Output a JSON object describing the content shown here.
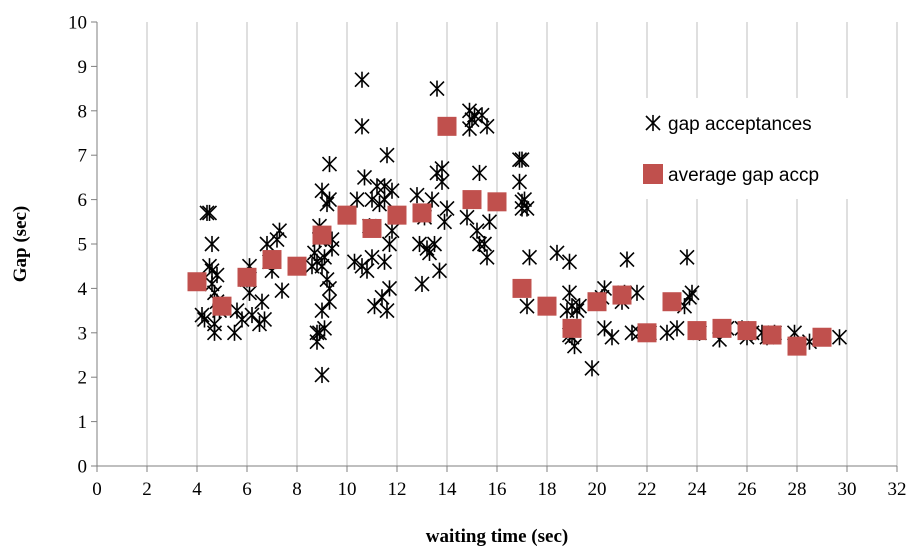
{
  "chart_data": {
    "type": "scatter",
    "xlabel": "waiting time (sec)",
    "ylabel": "Gap (sec)",
    "xlim": [
      0,
      32
    ],
    "ylim": [
      0,
      10
    ],
    "xticks": [
      "0",
      "2",
      "4",
      "6",
      "8",
      "10",
      "12",
      "14",
      "16",
      "18",
      "20",
      "22",
      "24",
      "26",
      "28",
      "30",
      "32"
    ],
    "yticks": [
      "0",
      "1",
      "2",
      "3",
      "4",
      "5",
      "6",
      "7",
      "8",
      "9",
      "10"
    ],
    "grid": "vertical",
    "legend_position": "right",
    "series": [
      {
        "name": "gap acceptances",
        "marker": "star",
        "color": "#000000",
        "points": [
          [
            4.2,
            3.4
          ],
          [
            4.3,
            3.3
          ],
          [
            4.4,
            5.7
          ],
          [
            4.5,
            5.7
          ],
          [
            4.5,
            4.5
          ],
          [
            4.6,
            4.4
          ],
          [
            4.6,
            4.1
          ],
          [
            4.6,
            5.0
          ],
          [
            4.7,
            3.9
          ],
          [
            4.7,
            3.2
          ],
          [
            4.7,
            3.0
          ],
          [
            4.8,
            4.3
          ],
          [
            4.8,
            3.7
          ],
          [
            4.9,
            3.5
          ],
          [
            5.5,
            3.0
          ],
          [
            5.6,
            3.5
          ],
          [
            5.8,
            3.3
          ],
          [
            6.0,
            4.2
          ],
          [
            6.1,
            3.9
          ],
          [
            6.1,
            4.5
          ],
          [
            6.2,
            3.4
          ],
          [
            6.5,
            3.2
          ],
          [
            6.6,
            3.7
          ],
          [
            6.7,
            3.3
          ],
          [
            6.8,
            5.0
          ],
          [
            6.9,
            4.6
          ],
          [
            7.0,
            4.4
          ],
          [
            7.2,
            5.1
          ],
          [
            7.3,
            5.3
          ],
          [
            7.4,
            3.95
          ],
          [
            8.6,
            4.5
          ],
          [
            8.7,
            4.8
          ],
          [
            8.8,
            2.8
          ],
          [
            8.8,
            3.0
          ],
          [
            8.8,
            4.6
          ],
          [
            8.9,
            3.0
          ],
          [
            8.9,
            5.4
          ],
          [
            8.9,
            5.1
          ],
          [
            9.0,
            6.2
          ],
          [
            9.0,
            4.5
          ],
          [
            9.0,
            3.5
          ],
          [
            9.0,
            2.05
          ],
          [
            9.1,
            3.1
          ],
          [
            9.1,
            4.7
          ],
          [
            9.2,
            4.2
          ],
          [
            9.2,
            5.9
          ],
          [
            9.3,
            6.8
          ],
          [
            9.3,
            6.0
          ],
          [
            9.3,
            4.0
          ],
          [
            9.3,
            3.7
          ],
          [
            9.4,
            4.9
          ],
          [
            9.4,
            5.1
          ],
          [
            10.3,
            4.6
          ],
          [
            10.4,
            6.0
          ],
          [
            10.6,
            7.65
          ],
          [
            10.6,
            8.7
          ],
          [
            10.6,
            4.5
          ],
          [
            10.7,
            6.5
          ],
          [
            10.8,
            4.4
          ],
          [
            10.9,
            5.4
          ],
          [
            11.0,
            4.7
          ],
          [
            11.0,
            6.0
          ],
          [
            11.1,
            3.6
          ],
          [
            11.2,
            6.3
          ],
          [
            11.3,
            5.9
          ],
          [
            11.4,
            3.8
          ],
          [
            11.5,
            4.6
          ],
          [
            11.5,
            6.3
          ],
          [
            11.5,
            6.0
          ],
          [
            11.6,
            7.0
          ],
          [
            11.6,
            3.5
          ],
          [
            11.7,
            5.0
          ],
          [
            11.7,
            4.0
          ],
          [
            11.8,
            6.2
          ],
          [
            11.8,
            5.3
          ],
          [
            12.8,
            6.1
          ],
          [
            12.9,
            5.0
          ],
          [
            13.0,
            4.1
          ],
          [
            13.1,
            5.6
          ],
          [
            13.2,
            4.9
          ],
          [
            13.3,
            4.8
          ],
          [
            13.4,
            6.0
          ],
          [
            13.5,
            5.0
          ],
          [
            13.6,
            6.6
          ],
          [
            13.6,
            8.5
          ],
          [
            13.7,
            4.4
          ],
          [
            13.8,
            6.7
          ],
          [
            13.8,
            6.4
          ],
          [
            13.9,
            5.5
          ],
          [
            14.0,
            5.8
          ],
          [
            14.8,
            5.6
          ],
          [
            14.9,
            8.0
          ],
          [
            14.9,
            7.6
          ],
          [
            15.0,
            7.8
          ],
          [
            15.1,
            7.9
          ],
          [
            15.2,
            5.3
          ],
          [
            15.3,
            5.0
          ],
          [
            15.3,
            6.6
          ],
          [
            15.4,
            7.9
          ],
          [
            15.5,
            5.0
          ],
          [
            15.6,
            4.7
          ],
          [
            15.6,
            7.65
          ],
          [
            15.7,
            5.5
          ],
          [
            16.9,
            6.9
          ],
          [
            16.9,
            6.4
          ],
          [
            17.0,
            5.8
          ],
          [
            17.0,
            5.95
          ],
          [
            17.0,
            6.9
          ],
          [
            17.1,
            6.0
          ],
          [
            17.2,
            5.8
          ],
          [
            17.2,
            3.6
          ],
          [
            17.3,
            4.7
          ],
          [
            18.4,
            4.8
          ],
          [
            18.8,
            3.5
          ],
          [
            18.9,
            2.95
          ],
          [
            18.9,
            4.6
          ],
          [
            18.9,
            3.9
          ],
          [
            19.0,
            3.6
          ],
          [
            19.0,
            2.9
          ],
          [
            19.1,
            2.7
          ],
          [
            19.2,
            3.5
          ],
          [
            19.3,
            3.6
          ],
          [
            19.8,
            2.2
          ],
          [
            20.2,
            3.8
          ],
          [
            20.3,
            3.1
          ],
          [
            20.3,
            4.0
          ],
          [
            20.6,
            2.9
          ],
          [
            21.0,
            3.7
          ],
          [
            21.1,
            3.9
          ],
          [
            21.2,
            4.65
          ],
          [
            21.4,
            3.0
          ],
          [
            21.6,
            3.9
          ],
          [
            21.7,
            3.0
          ],
          [
            22.1,
            3.0
          ],
          [
            22.8,
            3.0
          ],
          [
            23.2,
            3.1
          ],
          [
            23.5,
            3.6
          ],
          [
            23.6,
            4.7
          ],
          [
            23.7,
            3.8
          ],
          [
            23.8,
            3.9
          ],
          [
            24.1,
            3.0
          ],
          [
            24.9,
            2.85
          ],
          [
            25.2,
            3.1
          ],
          [
            25.8,
            3.1
          ],
          [
            26.0,
            2.9
          ],
          [
            26.2,
            3.0
          ],
          [
            26.6,
            3.0
          ],
          [
            26.8,
            2.9
          ],
          [
            27.1,
            3.0
          ],
          [
            27.9,
            3.0
          ],
          [
            28.5,
            2.8
          ],
          [
            29.7,
            2.9
          ]
        ]
      },
      {
        "name": "average gap accp",
        "marker": "square",
        "color": "#C0504D",
        "points": [
          [
            4,
            4.15
          ],
          [
            5,
            3.6
          ],
          [
            6,
            4.25
          ],
          [
            7,
            4.65
          ],
          [
            8,
            4.5
          ],
          [
            9,
            5.2
          ],
          [
            10,
            5.65
          ],
          [
            11,
            5.35
          ],
          [
            12,
            5.65
          ],
          [
            13,
            5.7
          ],
          [
            14,
            7.65
          ],
          [
            15,
            6.0
          ],
          [
            16,
            5.95
          ],
          [
            17,
            4.0
          ],
          [
            18,
            3.6
          ],
          [
            19,
            3.1
          ],
          [
            20,
            3.7
          ],
          [
            21,
            3.85
          ],
          [
            22,
            3.0
          ],
          [
            23,
            3.7
          ],
          [
            24,
            3.05
          ],
          [
            25,
            3.1
          ],
          [
            26,
            3.05
          ],
          [
            27,
            2.95
          ],
          [
            28,
            2.7
          ],
          [
            29,
            2.9
          ]
        ]
      }
    ]
  }
}
